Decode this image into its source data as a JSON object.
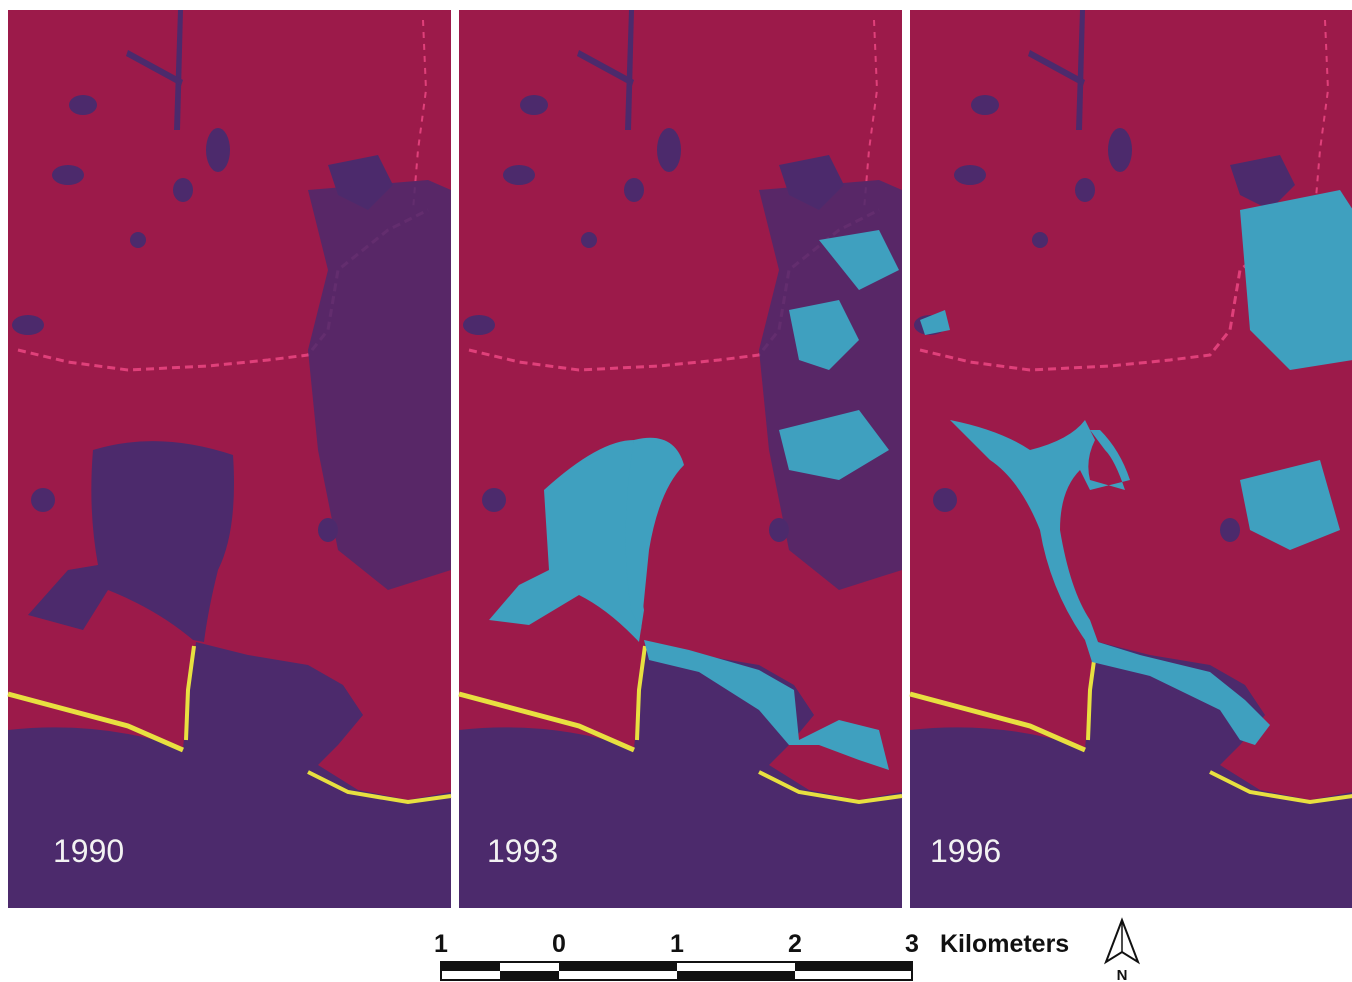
{
  "panels": [
    {
      "label": "1990"
    },
    {
      "label": "1993"
    },
    {
      "label": "1996"
    }
  ],
  "scale_bar": {
    "labels": [
      "1",
      "0",
      "1",
      "2",
      "3"
    ],
    "unit": "Kilometers"
  },
  "north_arrow": {
    "label": "N"
  }
}
